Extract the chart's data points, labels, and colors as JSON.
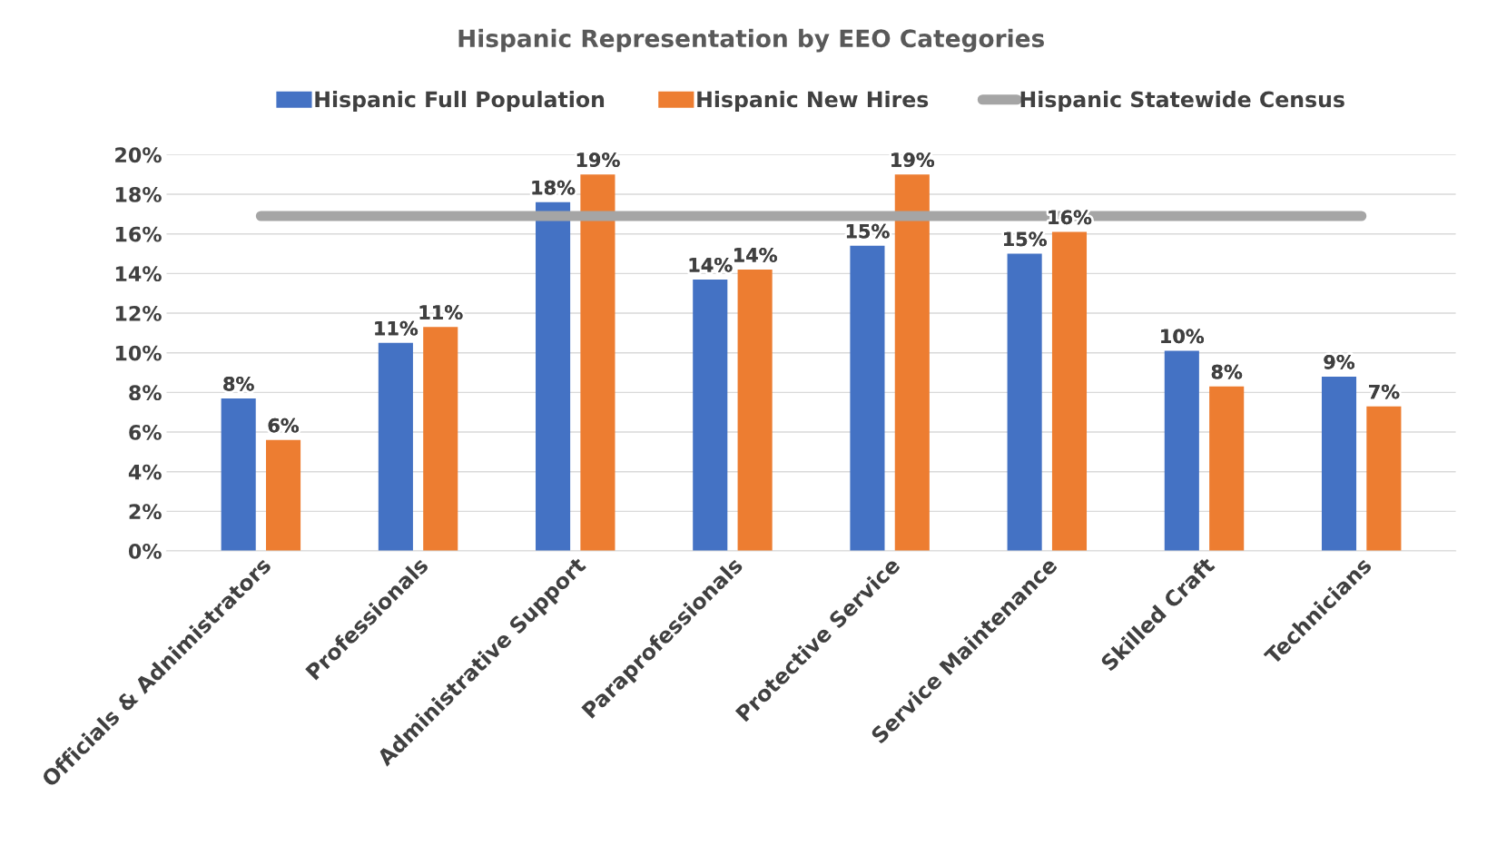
{
  "chart_data": {
    "type": "bar",
    "title": "Hispanic Representation by EEO Categories",
    "categories": [
      "Officials & Adnimistrators",
      "Professionals",
      "Administrative Support",
      "Paraprofessionals",
      "Protective Service",
      "Service Maintenance",
      "Skilled Craft",
      "Technicians"
    ],
    "series": [
      {
        "name": "Hispanic Full Population",
        "color": "#4472c4",
        "values": [
          7.7,
          10.5,
          17.6,
          13.7,
          15.4,
          15.0,
          10.1,
          8.8
        ],
        "value_labels": [
          "8%",
          "11%",
          "18%",
          "14%",
          "15%",
          "15%",
          "10%",
          "9%"
        ]
      },
      {
        "name": "Hispanic New Hires",
        "color": "#ed7d31",
        "values": [
          5.6,
          11.3,
          19.0,
          14.2,
          19.0,
          16.1,
          8.3,
          7.3
        ],
        "value_labels": [
          "6%",
          "11%",
          "19%",
          "14%",
          "19%",
          "16%",
          "8%",
          "7%"
        ]
      },
      {
        "name": "Hispanic Statewide Census",
        "type": "line",
        "color": "#a5a5a5",
        "values": [
          16.9,
          16.9,
          16.9,
          16.9,
          16.9,
          16.9,
          16.9,
          16.9
        ]
      }
    ],
    "ylim": [
      0,
      20
    ],
    "yticks": [
      {
        "value": 0,
        "label": "0%"
      },
      {
        "value": 2,
        "label": "2%"
      },
      {
        "value": 4,
        "label": "4%"
      },
      {
        "value": 6,
        "label": "6%"
      },
      {
        "value": 8,
        "label": "8%"
      },
      {
        "value": 10,
        "label": "10%"
      },
      {
        "value": 12,
        "label": "12%"
      },
      {
        "value": 14,
        "label": "14%"
      },
      {
        "value": 16,
        "label": "16%"
      },
      {
        "value": 18,
        "label": "18%"
      },
      {
        "value": 20,
        "label": "20%"
      }
    ],
    "grid": "y",
    "legend": "top"
  }
}
